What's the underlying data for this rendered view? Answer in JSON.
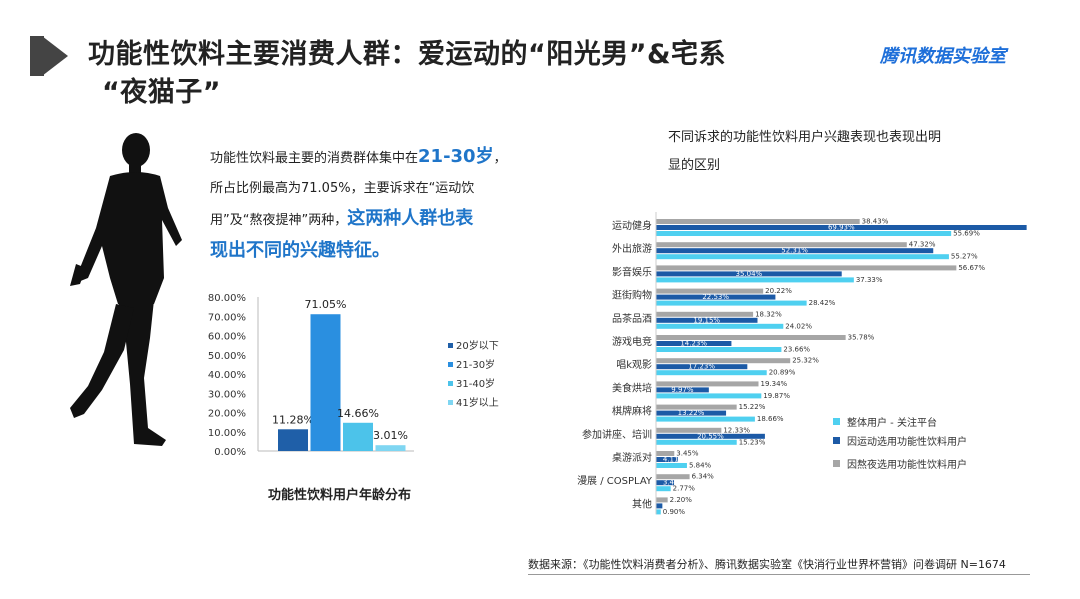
{
  "header": {
    "title_line1": "功能性饮料主要消费人群：爱运动的“阳光男”&宅系",
    "title_line2": "“夜猫子”",
    "brand": "腾讯数据实验室"
  },
  "intro": {
    "p1": "功能性饮料最主要的消费群体集中在",
    "p1_hl": "21-30岁",
    "p1_end": "，",
    "p2": "所占比例最高为71.05%，主要诉求在“运动饮",
    "p3": "用”及“熬夜提神”两种，",
    "p3_hl": "这两种人群也表",
    "p4_hl": "现出不同的兴趣特征。"
  },
  "right_title": {
    "line1": "不同诉求的功能性饮料用户兴趣表现也表现出明",
    "line2": "显的区别"
  },
  "source": "数据来源：《功能性饮料消费者分析》、腾讯数据实验室《快消行业世界杯营销》问卷调研  N=1674",
  "chart_data": [
    {
      "type": "bar",
      "title": "功能性饮料用户年龄分布",
      "ylim": [
        0,
        80
      ],
      "yticks": [
        "0.00%",
        "10.00%",
        "20.00%",
        "30.00%",
        "40.00%",
        "50.00%",
        "60.00%",
        "70.00%",
        "80.00%"
      ],
      "categories": [
        "20岁以下",
        "21-30岁",
        "31-40岁",
        "41岁以上"
      ],
      "values": [
        11.28,
        71.05,
        14.66,
        3.01
      ],
      "labels": [
        "11.28%",
        "71.05%",
        "14.66%",
        "3.01%"
      ],
      "colors": [
        "#1f5fa8",
        "#2a8fe0",
        "#4cc3ea",
        "#7fd6f2"
      ],
      "legend": "right",
      "grid": false
    },
    {
      "type": "bar",
      "orientation": "horizontal",
      "xlim": [
        0,
        80
      ],
      "categories": [
        "运动健身",
        "外出旅游",
        "影音娱乐",
        "逛街购物",
        "品茶品酒",
        "游戏电竞",
        "唱k观影",
        "美食烘培",
        "棋牌麻将",
        "参加讲座、培训",
        "桌游派对",
        "漫展 / COSPLAY",
        "其他"
      ],
      "series": [
        {
          "name": "整体用户 - 关注平台",
          "color": "#4fd0f0",
          "values": [
            55.69,
            55.27,
            37.33,
            28.42,
            24.02,
            23.66,
            20.89,
            19.87,
            18.66,
            15.23,
            5.84,
            2.77,
            0.9
          ],
          "labels": [
            "55.69%",
            "55.27%",
            "37.33%",
            "28.42%",
            "24.02%",
            "23.66%",
            "20.89%",
            "19.87%",
            "18.66%",
            "15.23%",
            "5.84%",
            "2.77%",
            "0.90%"
          ]
        },
        {
          "name": "因运动选用功能性饮料用户",
          "color": "#1c5aa6",
          "values": [
            69.93,
            52.31,
            35.04,
            22.53,
            19.15,
            14.23,
            17.23,
            9.97,
            13.22,
            20.55,
            4.11,
            3.4,
            1.2
          ],
          "labels": [
            "69.93%",
            "52.31%",
            "35.04%",
            "22.53%",
            "19.15%",
            "14.23%",
            "17.23%",
            "9.97%",
            "13.22%",
            "20.55%",
            "4.11%",
            "3.40%",
            "1.20%"
          ]
        },
        {
          "name": "因熬夜选用功能性饮料用户",
          "color": "#a6a6a6",
          "values": [
            38.43,
            47.32,
            56.67,
            20.22,
            18.32,
            35.78,
            25.32,
            19.34,
            15.22,
            12.33,
            3.45,
            6.34,
            2.2
          ],
          "labels": [
            "38.43%",
            "47.32%",
            "56.67%",
            "20.22%",
            "18.32%",
            "35.78%",
            "25.32%",
            "19.34%",
            "15.22%",
            "12.33%",
            "3.45%",
            "6.34%",
            "2.20%"
          ]
        }
      ],
      "legend": "bottom-right",
      "grid": false
    }
  ]
}
